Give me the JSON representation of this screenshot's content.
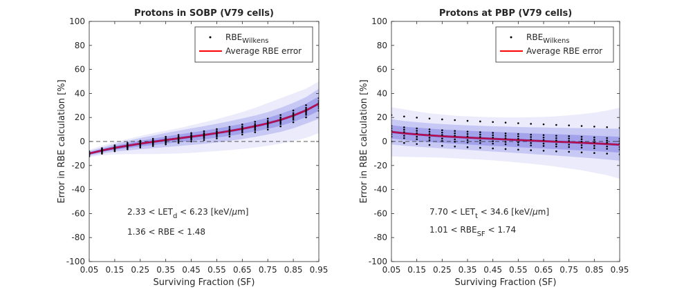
{
  "chart_data": [
    {
      "type": "scatter",
      "title": "Protons in SOBP (V79 cells)",
      "xlabel": "Surviving Fraction (SF)",
      "ylabel": "Error in RBE calculation [%]",
      "xlim": [
        0.05,
        0.95
      ],
      "ylim": [
        -100,
        100
      ],
      "xticks": [
        "0.05",
        "0.15",
        "0.25",
        "0.35",
        "0.45",
        "0.55",
        "0.65",
        "0.75",
        "0.85",
        "0.95"
      ],
      "yticks": [
        "-100",
        "-80",
        "-60",
        "-40",
        "-20",
        "0",
        "20",
        "40",
        "60",
        "80",
        "100"
      ],
      "grid": false,
      "zero_line": 0,
      "legend": {
        "placement": "top-right",
        "entries": [
          {
            "label_main": "RBE",
            "label_sub": "Wilkens",
            "style": "dot",
            "color": "#000000"
          },
          {
            "label_main": "Average RBE error",
            "label_sub": "",
            "style": "line",
            "color": "#ff0000"
          }
        ]
      },
      "annotations": [
        {
          "parts": [
            "2.33 < LET",
            "d",
            " < 6.23 [keV/",
            "μ",
            "m]"
          ]
        },
        {
          "parts": [
            "1.36 < RBE < 1.48",
            "",
            "",
            "",
            ""
          ]
        }
      ],
      "series": [
        {
          "name": "Average RBE error",
          "color": "#ff0000",
          "x": [
            0.05,
            0.1,
            0.15,
            0.2,
            0.25,
            0.3,
            0.35,
            0.4,
            0.45,
            0.5,
            0.55,
            0.6,
            0.65,
            0.7,
            0.75,
            0.8,
            0.85,
            0.9,
            0.95
          ],
          "y": [
            -10,
            -7.5,
            -5.3,
            -3.5,
            -1.8,
            -0.3,
            1.2,
            2.6,
            4,
            5.4,
            7,
            8.7,
            10.6,
            12.7,
            15.1,
            18,
            21.6,
            25.9,
            31.5
          ]
        }
      ],
      "bands": [
        {
          "color": "#ebebfc",
          "lower": [
            -13,
            -11.5,
            -10.8,
            -10.5,
            -10.5,
            -10.5,
            -10.3,
            -10,
            -9.5,
            -8.8,
            -8,
            -7.2,
            -6.2,
            -5,
            -3.5,
            -1.8,
            0.3,
            3,
            7
          ],
          "upper": [
            -7,
            -3.5,
            -0.5,
            2,
            4.5,
            7,
            9,
            11,
            13.5,
            16,
            18.5,
            21.5,
            24.5,
            28,
            32,
            36,
            40,
            44,
            50
          ]
        },
        {
          "color": "#c8c8f4",
          "lower": [
            -12,
            -10,
            -8.5,
            -7.5,
            -6.5,
            -5.5,
            -4.7,
            -3.8,
            -2.9,
            -2,
            -0.8,
            0.5,
            2,
            3.8,
            5.8,
            8,
            11,
            14.8,
            19
          ]
        },
        {
          "color": "#a3a3ec",
          "lower": [
            -11,
            -8.8,
            -7,
            -5.5,
            -4.2,
            -3,
            -1.8,
            -0.6,
            0.6,
            1.8,
            3.2,
            4.7,
            6.4,
            8.3,
            10.5,
            13,
            16.3,
            20.3,
            25.5
          ]
        }
      ],
      "scatter_x": [
        0.05,
        0.1,
        0.15,
        0.2,
        0.25,
        0.3,
        0.35,
        0.4,
        0.45,
        0.5,
        0.55,
        0.6,
        0.65,
        0.7,
        0.75,
        0.8,
        0.85,
        0.9,
        0.95
      ],
      "scatter_offsets": [
        -4,
        -2.5,
        -1.5,
        -0.5,
        0.5,
        1.5,
        3
      ]
    },
    {
      "type": "scatter",
      "title": "Protons at PBP (V79 cells)",
      "xlabel": "Surviving Fraction (SF)",
      "ylabel": "Error in RBE calculation [%]",
      "xlim": [
        0.05,
        0.95
      ],
      "ylim": [
        -100,
        100
      ],
      "xticks": [
        "0.05",
        "0.15",
        "0.25",
        "0.35",
        "0.45",
        "0.55",
        "0.65",
        "0.75",
        "0.85",
        "0.95"
      ],
      "yticks": [
        "-100",
        "-80",
        "-60",
        "-40",
        "-20",
        "0",
        "20",
        "40",
        "60",
        "80",
        "100"
      ],
      "grid": false,
      "zero_line": 0,
      "legend": {
        "placement": "top-right",
        "entries": [
          {
            "label_main": "RBE",
            "label_sub": "Wilkens",
            "style": "dot",
            "color": "#000000"
          },
          {
            "label_main": "Average RBE error",
            "label_sub": "",
            "style": "line",
            "color": "#ff0000"
          }
        ]
      },
      "annotations": [
        {
          "parts": [
            "7.70 < LET",
            "t",
            " < 34.6 [keV/",
            "μ",
            "m]"
          ]
        },
        {
          "parts": [
            "1.01 < RBE",
            "SF",
            " < 1.74",
            "",
            ""
          ]
        }
      ],
      "series": [
        {
          "name": "Average RBE error",
          "color": "#ff0000",
          "x": [
            0.05,
            0.1,
            0.15,
            0.2,
            0.25,
            0.3,
            0.35,
            0.4,
            0.45,
            0.5,
            0.55,
            0.6,
            0.65,
            0.7,
            0.75,
            0.8,
            0.85,
            0.9,
            0.95
          ],
          "y": [
            8,
            6.8,
            5.9,
            5.1,
            4.4,
            3.8,
            3.2,
            2.7,
            2.2,
            1.7,
            1.2,
            0.7,
            0.3,
            -0.2,
            -0.6,
            -1.1,
            -1.6,
            -2.1,
            -2.7
          ]
        }
      ],
      "bands": [
        {
          "color": "#ebebfc",
          "lower": [
            -12.5,
            -12.8,
            -13,
            -13.2,
            -13.5,
            -14,
            -14.5,
            -15,
            -15.7,
            -16.5,
            -17.5,
            -18.5,
            -19.7,
            -21,
            -22.5,
            -24,
            -26,
            -28,
            -31
          ],
          "upper": [
            28.5,
            26.8,
            25,
            23.5,
            22.5,
            21.5,
            21,
            20.5,
            20.2,
            20,
            20,
            20.2,
            20.5,
            21,
            21.8,
            22.8,
            24,
            25.8,
            28
          ]
        },
        {
          "color": "#c8c8f4",
          "lower": [
            -2.5,
            -3.5,
            -4.3,
            -5,
            -5.7,
            -6.3,
            -7,
            -7.7,
            -8.3,
            -9,
            -9.7,
            -10.4,
            -11.1,
            -11.8,
            -12.5,
            -13.3,
            -14.1,
            -15,
            -16
          ]
        },
        {
          "color": "#a3a3ec",
          "lower": [
            2.5,
            1.3,
            0.3,
            -0.5,
            -1.2,
            -1.9,
            -2.5,
            -3.1,
            -3.7,
            -4.2,
            -4.8,
            -5.3,
            -5.8,
            -6.4,
            -6.9,
            -7.5,
            -8,
            -8.6,
            -9.3
          ]
        }
      ],
      "scatter_x": [
        0.05,
        0.1,
        0.15,
        0.2,
        0.25,
        0.3,
        0.35,
        0.4,
        0.45,
        0.5,
        0.55,
        0.6,
        0.65,
        0.7,
        0.75,
        0.8,
        0.85,
        0.9,
        0.95
      ],
      "scatter_offsets": [
        -8,
        -4,
        -2,
        1,
        3,
        5,
        14
      ]
    }
  ]
}
